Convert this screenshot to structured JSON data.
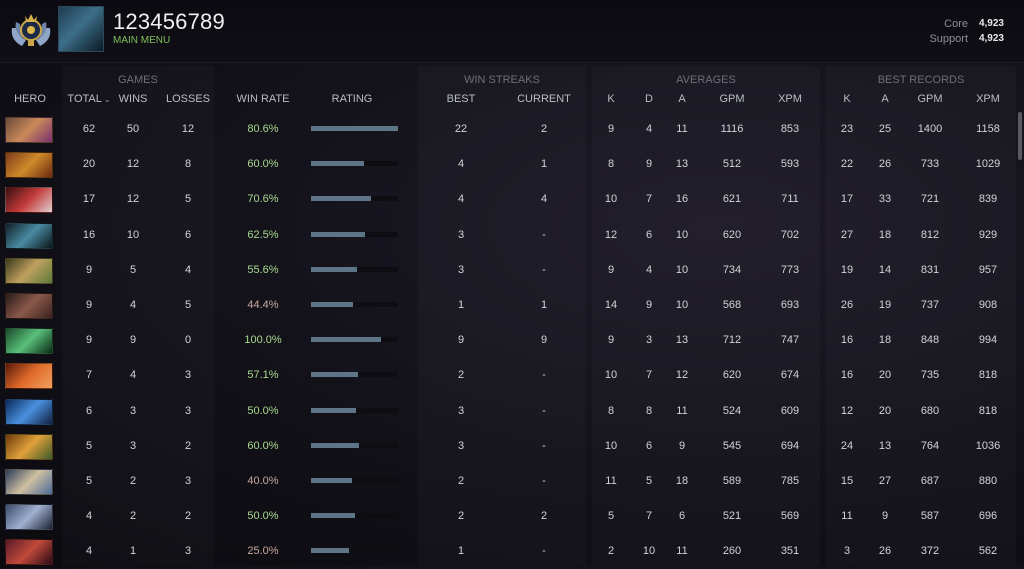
{
  "header": {
    "player_name": "123456789",
    "subtitle": "MAIN MENU",
    "mmr": [
      {
        "label": "Core",
        "value": "4,923"
      },
      {
        "label": "Support",
        "value": "4,923"
      }
    ],
    "rank_icon": "rank-medal-icon",
    "avatar_icon": "player-avatar"
  },
  "group_headers": {
    "games": "GAMES",
    "win_streaks": "WIN STREAKS",
    "averages": "AVERAGES",
    "best_records": "BEST RECORDS"
  },
  "columns": {
    "hero": "HERO",
    "total": "TOTAL",
    "wins": "WINS",
    "losses": "LOSSES",
    "win_rate": "WIN RATE",
    "rating": "RATING",
    "best": "BEST",
    "current": "CURRENT",
    "avg_k": "K",
    "avg_d": "D",
    "avg_a": "A",
    "avg_gpm": "GPM",
    "avg_xpm": "XPM",
    "rec_k": "K",
    "rec_a": "A",
    "rec_gpm": "GPM",
    "rec_xpm": "XPM"
  },
  "colors": {
    "win_rate_positive": "#a9d98f",
    "rating_bar": "#5d7586"
  },
  "rows": [
    {
      "hero_colors": [
        "#6a4a3a",
        "#c98a5a",
        "#7a2f6e"
      ],
      "total": "62",
      "wins": "50",
      "losses": "12",
      "win_rate": "80.6%",
      "rating": 1.0,
      "best": "22",
      "current": "2",
      "avg_k": "9",
      "avg_d": "4",
      "avg_a": "11",
      "avg_gpm": "1116",
      "avg_xpm": "853",
      "rec_k": "23",
      "rec_a": "25",
      "rec_gpm": "1400",
      "rec_xpm": "1158"
    },
    {
      "hero_colors": [
        "#7a3a1a",
        "#d08a2a",
        "#6a2a12"
      ],
      "total": "20",
      "wins": "12",
      "losses": "8",
      "win_rate": "60.0%",
      "rating": 0.61,
      "best": "4",
      "current": "1",
      "avg_k": "8",
      "avg_d": "9",
      "avg_a": "13",
      "avg_gpm": "512",
      "avg_xpm": "593",
      "rec_k": "22",
      "rec_a": "26",
      "rec_gpm": "733",
      "rec_xpm": "1029"
    },
    {
      "hero_colors": [
        "#3a1010",
        "#c43a3a",
        "#e0d0d0"
      ],
      "total": "17",
      "wins": "12",
      "losses": "5",
      "win_rate": "70.6%",
      "rating": 0.69,
      "best": "4",
      "current": "4",
      "avg_k": "10",
      "avg_d": "7",
      "avg_a": "16",
      "avg_gpm": "621",
      "avg_xpm": "711",
      "rec_k": "17",
      "rec_a": "33",
      "rec_gpm": "721",
      "rec_xpm": "839"
    },
    {
      "hero_colors": [
        "#102028",
        "#4a8aa0",
        "#0a1418"
      ],
      "total": "16",
      "wins": "10",
      "losses": "6",
      "win_rate": "62.5%",
      "rating": 0.62,
      "best": "3",
      "current": "-",
      "avg_k": "12",
      "avg_d": "6",
      "avg_a": "10",
      "avg_gpm": "620",
      "avg_xpm": "702",
      "rec_k": "27",
      "rec_a": "18",
      "rec_gpm": "812",
      "rec_xpm": "929"
    },
    {
      "hero_colors": [
        "#3a3a1a",
        "#c0a060",
        "#5a7a3a"
      ],
      "total": "9",
      "wins": "5",
      "losses": "4",
      "win_rate": "55.6%",
      "rating": 0.53,
      "best": "3",
      "current": "-",
      "avg_k": "9",
      "avg_d": "4",
      "avg_a": "10",
      "avg_gpm": "734",
      "avg_xpm": "773",
      "rec_k": "19",
      "rec_a": "14",
      "rec_gpm": "831",
      "rec_xpm": "957"
    },
    {
      "hero_colors": [
        "#2a1a1a",
        "#8a5a4a",
        "#3a2020"
      ],
      "total": "9",
      "wins": "4",
      "losses": "5",
      "win_rate": "44.4%",
      "rating": 0.48,
      "best": "1",
      "current": "1",
      "avg_k": "14",
      "avg_d": "9",
      "avg_a": "10",
      "avg_gpm": "568",
      "avg_xpm": "693",
      "rec_k": "26",
      "rec_a": "19",
      "rec_gpm": "737",
      "rec_xpm": "908"
    },
    {
      "hero_colors": [
        "#1a4a2a",
        "#5ac07a",
        "#0a2a14"
      ],
      "total": "9",
      "wins": "9",
      "losses": "0",
      "win_rate": "100.0%",
      "rating": 0.8,
      "best": "9",
      "current": "9",
      "avg_k": "9",
      "avg_d": "3",
      "avg_a": "13",
      "avg_gpm": "712",
      "avg_xpm": "747",
      "rec_k": "16",
      "rec_a": "18",
      "rec_gpm": "848",
      "rec_xpm": "994"
    },
    {
      "hero_colors": [
        "#5a1a0a",
        "#e06a2a",
        "#f0a060"
      ],
      "total": "7",
      "wins": "4",
      "losses": "3",
      "win_rate": "57.1%",
      "rating": 0.54,
      "best": "2",
      "current": "-",
      "avg_k": "10",
      "avg_d": "7",
      "avg_a": "12",
      "avg_gpm": "620",
      "avg_xpm": "674",
      "rec_k": "16",
      "rec_a": "20",
      "rec_gpm": "735",
      "rec_xpm": "818"
    },
    {
      "hero_colors": [
        "#0a2a5a",
        "#4a90e0",
        "#102040"
      ],
      "total": "6",
      "wins": "3",
      "losses": "3",
      "win_rate": "50.0%",
      "rating": 0.52,
      "best": "3",
      "current": "-",
      "avg_k": "8",
      "avg_d": "8",
      "avg_a": "11",
      "avg_gpm": "524",
      "avg_xpm": "609",
      "rec_k": "12",
      "rec_a": "20",
      "rec_gpm": "680",
      "rec_xpm": "818"
    },
    {
      "hero_colors": [
        "#6a3a0a",
        "#e0a03a",
        "#3a5a2a"
      ],
      "total": "5",
      "wins": "3",
      "losses": "2",
      "win_rate": "60.0%",
      "rating": 0.55,
      "best": "3",
      "current": "-",
      "avg_k": "10",
      "avg_d": "6",
      "avg_a": "9",
      "avg_gpm": "545",
      "avg_xpm": "694",
      "rec_k": "24",
      "rec_a": "13",
      "rec_gpm": "764",
      "rec_xpm": "1036"
    },
    {
      "hero_colors": [
        "#2a3a5a",
        "#d0c0a0",
        "#4a6a9a"
      ],
      "total": "5",
      "wins": "2",
      "losses": "3",
      "win_rate": "40.0%",
      "rating": 0.47,
      "best": "2",
      "current": "-",
      "avg_k": "11",
      "avg_d": "5",
      "avg_a": "18",
      "avg_gpm": "589",
      "avg_xpm": "785",
      "rec_k": "15",
      "rec_a": "27",
      "rec_gpm": "687",
      "rec_xpm": "880"
    },
    {
      "hero_colors": [
        "#3a4a6a",
        "#a0b0d0",
        "#1a2030"
      ],
      "total": "4",
      "wins": "2",
      "losses": "2",
      "win_rate": "50.0%",
      "rating": 0.51,
      "best": "2",
      "current": "2",
      "avg_k": "5",
      "avg_d": "7",
      "avg_a": "6",
      "avg_gpm": "521",
      "avg_xpm": "569",
      "rec_k": "11",
      "rec_a": "9",
      "rec_gpm": "587",
      "rec_xpm": "696"
    },
    {
      "hero_colors": [
        "#5a1a2a",
        "#c04a3a",
        "#2a0a14"
      ],
      "total": "4",
      "wins": "1",
      "losses": "3",
      "win_rate": "25.0%",
      "rating": 0.44,
      "best": "1",
      "current": "-",
      "avg_k": "2",
      "avg_d": "10",
      "avg_a": "11",
      "avg_gpm": "260",
      "avg_xpm": "351",
      "rec_k": "3",
      "rec_a": "26",
      "rec_gpm": "372",
      "rec_xpm": "562"
    }
  ]
}
